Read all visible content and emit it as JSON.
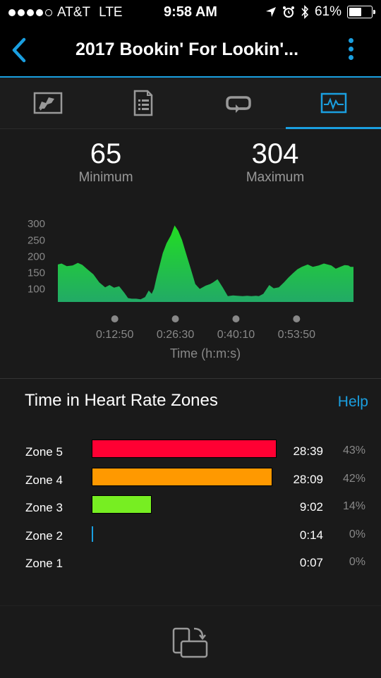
{
  "status": {
    "carrier": "AT&T",
    "network": "LTE",
    "time": "9:58 AM",
    "battery": "61%",
    "battery_level": 0.61
  },
  "header": {
    "title": "2017 Bookin' For Lookin'..."
  },
  "tabs": [
    {
      "icon": "map-icon",
      "active": false
    },
    {
      "icon": "details-icon",
      "active": false
    },
    {
      "icon": "laps-icon",
      "active": false
    },
    {
      "icon": "heart-rate-chart-icon",
      "active": true
    }
  ],
  "stats": {
    "minimum_value": "65",
    "minimum_label": "Minimum",
    "maximum_value": "304",
    "maximum_label": "Maximum"
  },
  "chart_data": {
    "type": "area",
    "xlabel": "Time (h:m:s)",
    "x_ticks": [
      "0:12:50",
      "0:26:30",
      "0:40:10",
      "0:53:50"
    ],
    "x_tick_seconds": [
      770,
      1590,
      2410,
      3230
    ],
    "y_ticks": [
      100,
      150,
      200,
      250,
      300
    ],
    "ylim": [
      60,
      320
    ],
    "x_seconds": [
      0,
      50,
      120,
      200,
      270,
      330,
      400,
      480,
      560,
      640,
      700,
      760,
      830,
      900,
      950,
      1000,
      1060,
      1120,
      1180,
      1230,
      1270,
      1300,
      1340,
      1380,
      1420,
      1470,
      1530,
      1580,
      1630,
      1680,
      1720,
      1760,
      1800,
      1860,
      1920,
      2000,
      2060,
      2100,
      2160,
      2230,
      2300,
      2370,
      2430,
      2500,
      2560,
      2620,
      2680,
      2720,
      2780,
      2860,
      2920,
      2990,
      3060,
      3120,
      3180,
      3240,
      3300,
      3380,
      3450,
      3530,
      3600,
      3650,
      3700,
      3760,
      3820,
      3880,
      3930,
      3960,
      4000
    ],
    "y_values": [
      175,
      178,
      170,
      172,
      180,
      174,
      160,
      145,
      120,
      105,
      112,
      104,
      108,
      88,
      72,
      70,
      70,
      68,
      75,
      95,
      85,
      100,
      140,
      175,
      210,
      240,
      265,
      295,
      278,
      250,
      220,
      190,
      160,
      115,
      100,
      110,
      115,
      120,
      130,
      105,
      78,
      80,
      79,
      78,
      79,
      78,
      79,
      78,
      85,
      112,
      102,
      105,
      120,
      135,
      148,
      160,
      168,
      175,
      168,
      172,
      178,
      175,
      172,
      162,
      168,
      173,
      172,
      168,
      168
    ],
    "area_color_top": "#22dd22",
    "area_color_bottom": "#22aa66"
  },
  "zones": {
    "title": "Time in Heart Rate Zones",
    "help_label": "Help",
    "rows": [
      {
        "name": "Zone 5",
        "time": "28:39",
        "percent": "43%",
        "fraction": 0.43,
        "color": "#ff0033"
      },
      {
        "name": "Zone 4",
        "time": "28:09",
        "percent": "42%",
        "fraction": 0.42,
        "color": "#ff9900"
      },
      {
        "name": "Zone 3",
        "time": "9:02",
        "percent": "14%",
        "fraction": 0.14,
        "color": "#77ee22"
      },
      {
        "name": "Zone 2",
        "time": "0:14",
        "percent": "0%",
        "fraction": 0.002,
        "color": "#1a9fe0"
      },
      {
        "name": "Zone 1",
        "time": "0:07",
        "percent": "0%",
        "fraction": 0.0,
        "color": "#888888"
      }
    ]
  },
  "colors": {
    "accent": "#1a9fe0"
  }
}
